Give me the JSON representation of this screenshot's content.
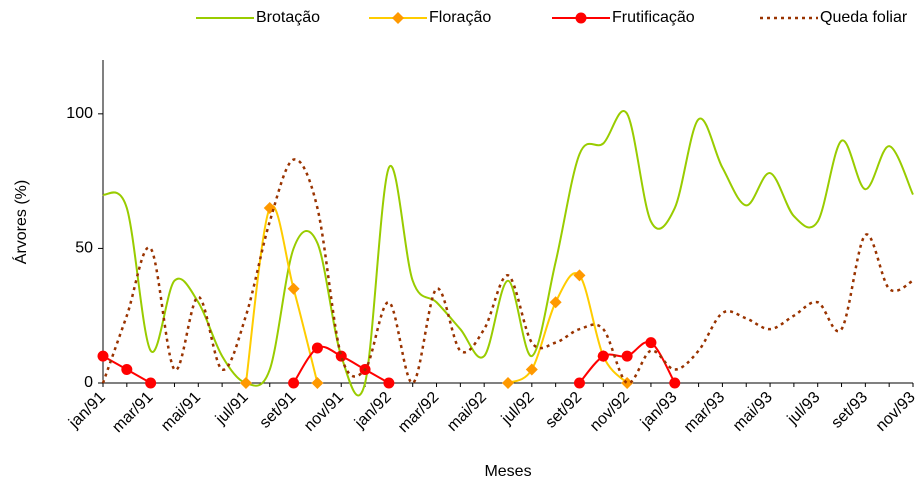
{
  "chart_data": {
    "type": "line",
    "y_label": "Árvores (%)",
    "x_label": "Meses",
    "categories": [
      "jan/91",
      null,
      "mar/91",
      null,
      "mai/91",
      null,
      "jul/91",
      null,
      "set/91",
      null,
      "nov/91",
      null,
      "jan/92",
      null,
      "mar/92",
      null,
      "mai/92",
      null,
      "jul/92",
      null,
      "set/92",
      null,
      "nov/92",
      null,
      "jan/93",
      null,
      "mar/93",
      null,
      "mai/93",
      null,
      "jul/93",
      null,
      "set/93",
      null,
      "nov/93"
    ],
    "series": [
      {
        "name": "Brotação",
        "color": "#99cc00",
        "marker": "none",
        "style": "solid",
        "values": [
          70,
          65,
          12,
          38,
          30,
          10,
          0,
          5,
          50,
          52,
          10,
          0,
          80,
          38,
          30,
          20,
          10,
          38,
          10,
          45,
          85,
          89,
          100,
          60,
          65,
          98,
          80,
          66,
          78,
          62,
          60,
          90,
          72,
          88,
          70
        ]
      },
      {
        "name": "Floração",
        "color": "#ffcc00",
        "marker": "diamond",
        "marker_color": "#ff9900",
        "style": "solid",
        "values": [
          null,
          null,
          null,
          null,
          null,
          null,
          0,
          65,
          35,
          0,
          null,
          null,
          null,
          null,
          null,
          null,
          null,
          0,
          5,
          30,
          40,
          10,
          0,
          null,
          null,
          null,
          null,
          null,
          null,
          null,
          null,
          null,
          null,
          null,
          null
        ]
      },
      {
        "name": "Frutificação",
        "color": "#ff0000",
        "marker": "circle",
        "marker_color": "#ff0000",
        "style": "solid",
        "values": [
          10,
          5,
          0,
          null,
          null,
          null,
          null,
          null,
          0,
          13,
          10,
          5,
          0,
          null,
          null,
          null,
          null,
          null,
          null,
          null,
          0,
          10,
          10,
          15,
          0,
          null,
          null,
          null,
          null,
          null,
          null,
          null,
          null,
          null,
          null
        ]
      },
      {
        "name": "Queda foliar",
        "color": "#993300",
        "marker": "none",
        "style": "dotted",
        "values": [
          0,
          25,
          50,
          5,
          32,
          5,
          25,
          60,
          83,
          65,
          10,
          5,
          30,
          0,
          35,
          12,
          20,
          40,
          15,
          15,
          20,
          20,
          0,
          12,
          5,
          12,
          26,
          24,
          20,
          25,
          30,
          20,
          55,
          35,
          38
        ]
      }
    ],
    "ylim": [
      0,
      120
    ],
    "yticks": [
      0,
      50,
      100
    ],
    "grid": false,
    "legend": "top"
  }
}
